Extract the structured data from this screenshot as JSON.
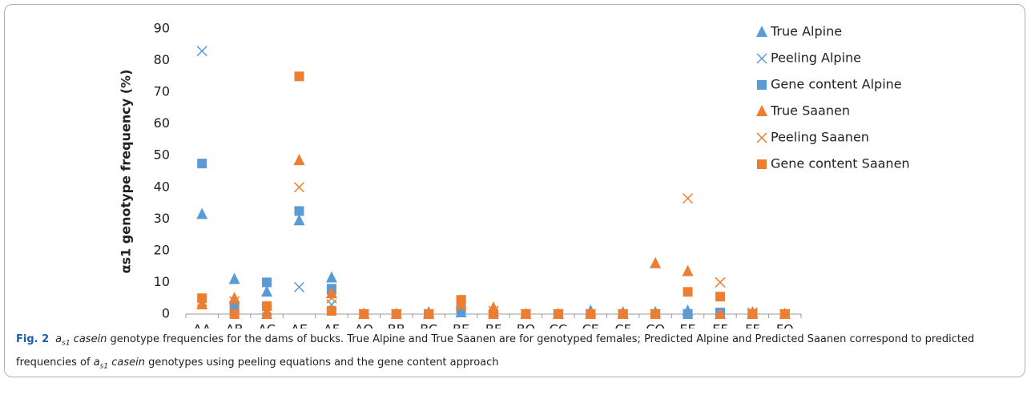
{
  "chart_data": {
    "type": "scatter",
    "y_label": "αs1 genotype frequency (%)",
    "categories": [
      "AA",
      "AB",
      "AC",
      "AE",
      "AF",
      "AO",
      "BB",
      "BC",
      "BE",
      "BF",
      "BO",
      "CC",
      "CE",
      "CF",
      "CO",
      "EE",
      "EF",
      "FF",
      "FO"
    ],
    "ylim": [
      0,
      90
    ],
    "yticks": [
      0,
      10,
      20,
      30,
      40,
      50,
      60,
      70,
      80,
      90
    ],
    "legend": "right",
    "series": [
      {
        "name": "True Alpine",
        "color": "#5b9bd5",
        "marker": "triangle",
        "values": [
          31.5,
          11,
          7,
          29.5,
          11.5,
          0,
          0,
          0.5,
          0.5,
          0.5,
          0,
          0,
          1,
          0.5,
          0.5,
          1,
          0,
          0,
          0
        ]
      },
      {
        "name": "Peeling Alpine",
        "color": "#5b9bd5",
        "marker": "x",
        "values": [
          83,
          2,
          1,
          8.5,
          3,
          0,
          0,
          0,
          0.5,
          0,
          0,
          0,
          0,
          0,
          0,
          0,
          0,
          0,
          0
        ]
      },
      {
        "name": "Gene content Alpine",
        "color": "#5b9bd5",
        "marker": "square",
        "values": [
          47.5,
          2.5,
          10,
          32.5,
          8,
          0,
          0,
          0,
          1.5,
          0,
          0,
          0,
          0,
          0,
          0,
          0,
          0.5,
          0,
          0
        ]
      },
      {
        "name": "True Saanen",
        "color": "#ed7d31",
        "marker": "triangle",
        "values": [
          3,
          5,
          0,
          48.5,
          6.5,
          0,
          0,
          0,
          3,
          2,
          0,
          0,
          0,
          0,
          16,
          13.5,
          0,
          0.5,
          0
        ]
      },
      {
        "name": "Peeling Saanen",
        "color": "#ed7d31",
        "marker": "x",
        "values": [
          4,
          4,
          1.5,
          40,
          5,
          0,
          0,
          0,
          2.5,
          1,
          0,
          0,
          0,
          0,
          0,
          36.5,
          10,
          0.5,
          0
        ]
      },
      {
        "name": "Gene content Saanen",
        "color": "#ed7d31",
        "marker": "square",
        "values": [
          5,
          0,
          2.5,
          75,
          1,
          0,
          0,
          0,
          4.5,
          0,
          0,
          0,
          0,
          0,
          0,
          7,
          5.5,
          0,
          0
        ]
      }
    ]
  },
  "caption": {
    "label": "Fig. 2",
    "segments": [
      {
        "text": "a",
        "italic": true
      },
      {
        "text": "s1",
        "italic": true,
        "sub": true
      },
      {
        "text": " casein",
        "italic": true
      },
      {
        "text": " genotype frequencies for the dams of bucks. True Alpine and True Saanen are for genotyped females; Predicted Alpine and Predicted Saanen correspond to predicted frequencies of "
      },
      {
        "text": "a",
        "italic": true
      },
      {
        "text": "s1",
        "italic": true,
        "sub": true
      },
      {
        "text": " casein",
        "italic": true
      },
      {
        "text": "  genotypes using peeling equations and the gene content approach"
      }
    ]
  }
}
